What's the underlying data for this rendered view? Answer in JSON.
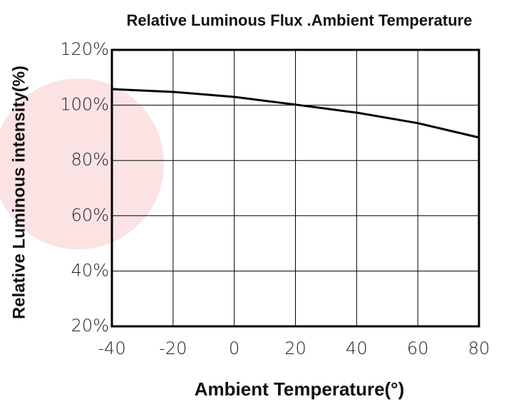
{
  "chart_data": {
    "type": "line",
    "title": "Relative Luminous Flux .Ambient Temperature",
    "x_label": "Ambient Temperature(°)",
    "y_label": "Relative Luminous intensity(%)",
    "x": [
      -40,
      -20,
      0,
      20,
      40,
      60,
      80
    ],
    "series": [
      {
        "color": "#000000",
        "values": [
          105.8,
          104.8,
          103,
          100.2,
          97.3,
          93.5,
          88.3
        ]
      }
    ],
    "xlim": [
      -40,
      80
    ],
    "xticks": [
      -40,
      -20,
      0,
      20,
      40,
      60,
      80
    ],
    "ylim": [
      20,
      120
    ],
    "yticks": [
      {
        "value": 20,
        "label": "20%"
      },
      {
        "value": 40,
        "label": "40%"
      },
      {
        "value": 60,
        "label": "60%"
      },
      {
        "value": 80,
        "label": "80%"
      },
      {
        "value": 100,
        "label": "100%"
      },
      {
        "value": 120,
        "label": "120%"
      }
    ],
    "grid": true
  }
}
